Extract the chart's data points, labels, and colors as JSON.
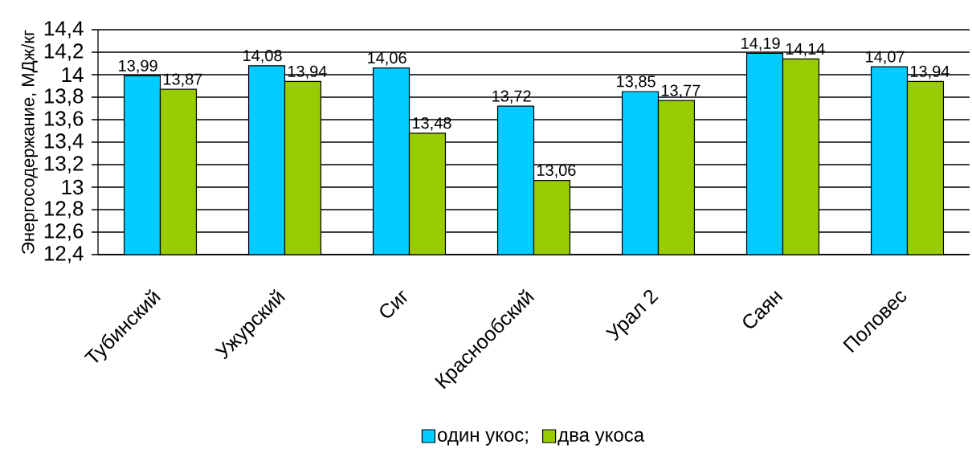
{
  "chart_data": {
    "type": "bar",
    "ylabel": "Энергосодержание, МДж/кг",
    "categories": [
      "Тубинский",
      "Ужурский",
      "Сиг",
      "Краснообский",
      "Урал 2",
      "Саян",
      "Половес"
    ],
    "series": [
      {
        "name": "один укос;",
        "color": "#00ccff",
        "values": [
          13.99,
          14.08,
          14.06,
          13.72,
          13.85,
          14.19,
          14.07
        ],
        "value_labels": [
          "13,99",
          "14,08",
          "14,06",
          "13,72",
          "13,85",
          "14,19",
          "14,07"
        ]
      },
      {
        "name": "два укоса",
        "color": "#99cc00",
        "values": [
          13.87,
          13.94,
          13.48,
          13.06,
          13.77,
          14.14,
          13.94
        ],
        "value_labels": [
          "13,87",
          "13,94",
          "13,48",
          "13,06",
          "13,77",
          "14,14",
          "13,94"
        ]
      }
    ],
    "ylim": [
      12.4,
      14.4
    ],
    "yticks": [
      {
        "value": 12.4,
        "label": "12,4"
      },
      {
        "value": 12.6,
        "label": "12,6"
      },
      {
        "value": 12.8,
        "label": "12,8"
      },
      13,
      {
        "value": 13.2,
        "label": "13,2"
      },
      {
        "value": 13.4,
        "label": "13,4"
      },
      {
        "value": 13.6,
        "label": "13,6"
      },
      {
        "value": 13.8,
        "label": "13,8"
      },
      14,
      {
        "value": 14.2,
        "label": "14,2"
      },
      {
        "value": 14.4,
        "label": "14,4"
      }
    ],
    "grid": "y",
    "legend": "bottom"
  }
}
